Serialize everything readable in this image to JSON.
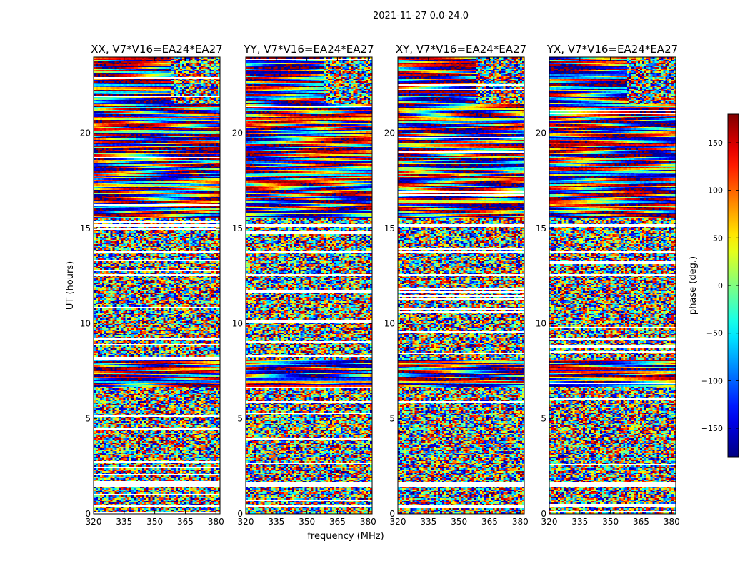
{
  "figure": {
    "suptitle": "2021-11-27 0.0-24.0",
    "shared_xlabel": "frequency (MHz)",
    "shared_ylabel": "UT (hours)"
  },
  "chart_data": {
    "type": "heatmap",
    "x_range": [
      320,
      382
    ],
    "y_range": [
      0,
      24
    ],
    "x_ticks": [
      320,
      335,
      350,
      365,
      380
    ],
    "y_ticks": [
      0,
      5,
      10,
      15,
      20
    ],
    "panels": [
      {
        "title": "XX, V7*V16=EA24*EA27",
        "seed": 11
      },
      {
        "title": "YY, V7*V16=EA24*EA27",
        "seed": 23
      },
      {
        "title": "XY, V7*V16=EA24*EA27",
        "seed": 37
      },
      {
        "title": "YX, V7*V16=EA24*EA27",
        "seed": 53
      }
    ],
    "colorbar": {
      "label": "phase (deg.)",
      "range": [
        -180,
        180
      ],
      "ticks": [
        -150,
        -100,
        -50,
        0,
        50,
        100,
        150
      ],
      "tick_labels": [
        "−150",
        "−100",
        "−50",
        "0",
        "50",
        "100",
        "150"
      ],
      "colormap": "jet"
    },
    "data_gaps_ut_hours": [
      [
        0.38,
        0.48
      ],
      [
        1.42,
        1.62
      ],
      [
        12.55,
        12.62
      ],
      [
        13.75,
        13.82
      ],
      [
        15.1,
        15.2
      ]
    ],
    "structured_ut_ranges": [
      [
        6.7,
        8.1
      ],
      [
        15.5,
        24.0
      ]
    ]
  }
}
